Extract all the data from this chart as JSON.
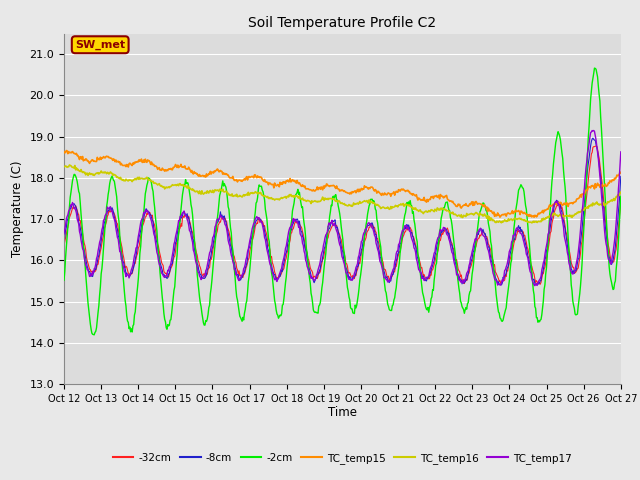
{
  "title": "Soil Temperature Profile C2",
  "xlabel": "Time",
  "ylabel": "Temperature (C)",
  "ylim": [
    13.0,
    21.5
  ],
  "yticks": [
    13.0,
    14.0,
    15.0,
    16.0,
    17.0,
    18.0,
    19.0,
    20.0,
    21.0
  ],
  "xtick_labels": [
    "Oct 12",
    "Oct 13",
    "Oct 14",
    "Oct 15",
    "Oct 16",
    "Oct 17",
    "Oct 18",
    "Oct 19",
    "Oct 20",
    "Oct 21",
    "Oct 22",
    "Oct 23",
    "Oct 24",
    "Oct 25",
    "Oct 26",
    "Oct 27"
  ],
  "annotation_text": "SW_met",
  "annotation_color": "#8B0000",
  "annotation_bg": "#FFD700",
  "series_colors": {
    "-32cm": "#FF2020",
    "-8cm": "#2020CC",
    "-2cm": "#00EE00",
    "TC_temp15": "#FF8C00",
    "TC_temp16": "#CCCC00",
    "TC_temp17": "#9400D3"
  },
  "legend_labels": [
    "-32cm",
    "-8cm",
    "-2cm",
    "TC_temp15",
    "TC_temp16",
    "TC_temp17"
  ],
  "fig_bg": "#E8E8E8",
  "plot_bg": "#DCDCDC",
  "grid_color": "#FFFFFF"
}
